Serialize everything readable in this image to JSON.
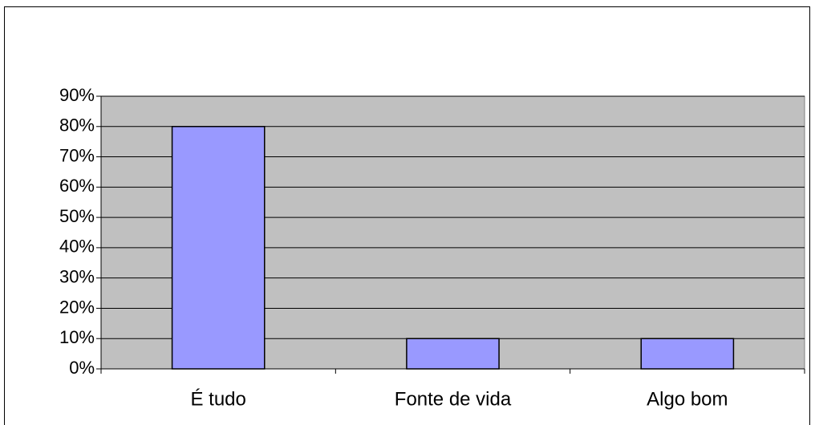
{
  "chart_data": {
    "type": "bar",
    "categories": [
      "É tudo",
      "Fonte de vida",
      "Algo bom"
    ],
    "values": [
      80,
      10,
      10
    ],
    "color": "#9999ff",
    "ylim": [
      0,
      90
    ],
    "yticks": [
      {
        "value": 0,
        "label": "0%"
      },
      {
        "value": 10,
        "label": "10%"
      },
      {
        "value": 20,
        "label": "20%"
      },
      {
        "value": 30,
        "label": "30%"
      },
      {
        "value": 40,
        "label": "40%"
      },
      {
        "value": 50,
        "label": "50%"
      },
      {
        "value": 60,
        "label": "60%"
      },
      {
        "value": 70,
        "label": "70%"
      },
      {
        "value": 80,
        "label": "80%"
      },
      {
        "value": 90,
        "label": "90%"
      }
    ],
    "grid": true
  }
}
